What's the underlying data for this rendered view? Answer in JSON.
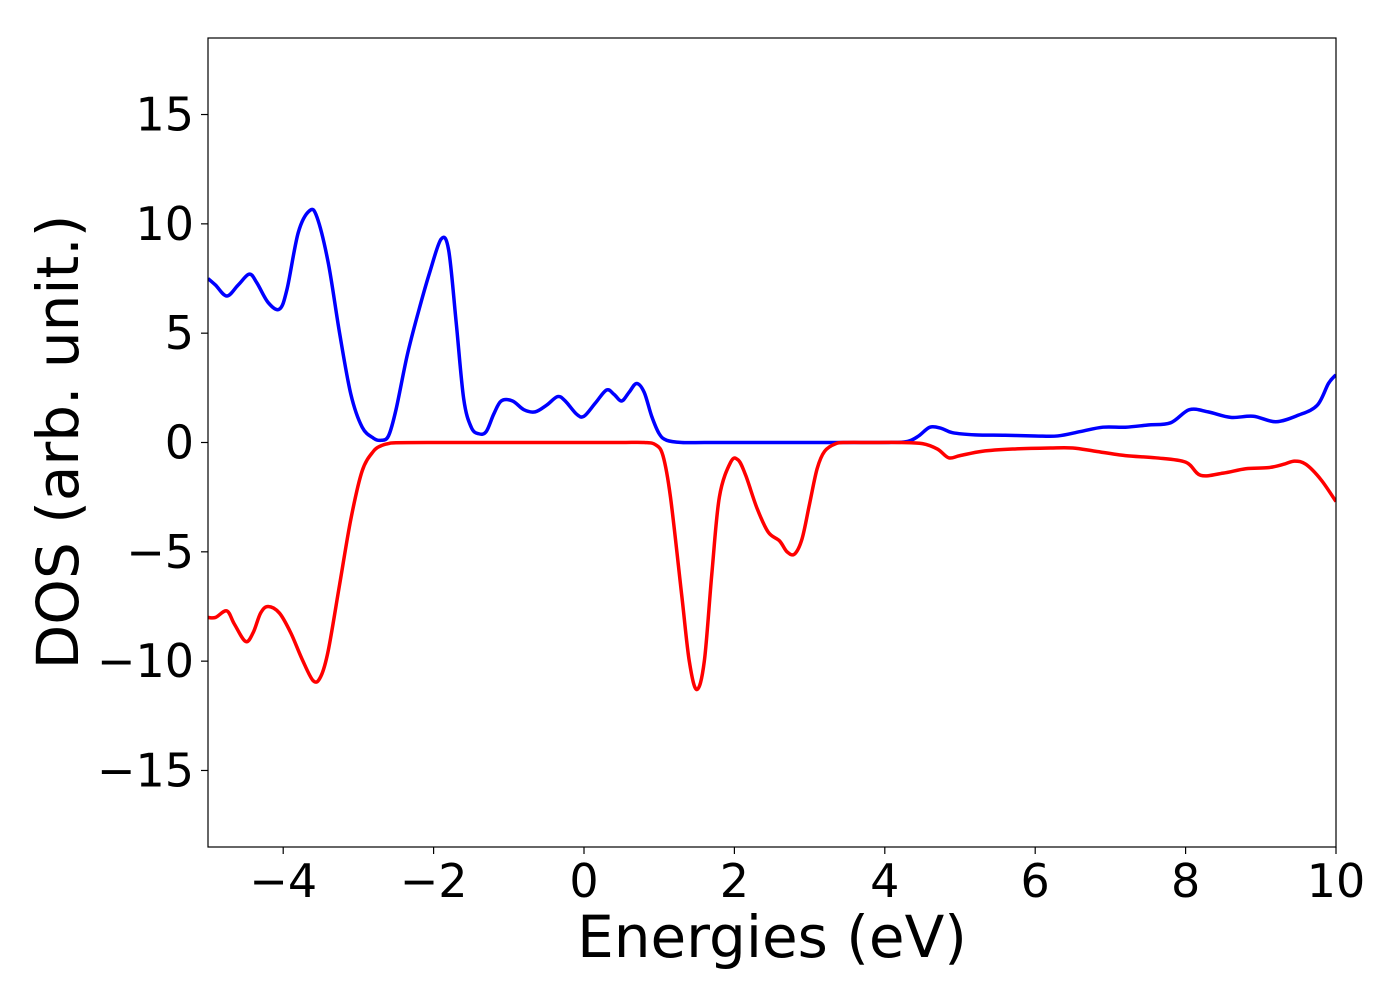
{
  "chart_data": {
    "type": "line",
    "title": "",
    "xlabel": "Energies (eV)",
    "ylabel": "DOS (arb. unit.)",
    "xlim": [
      -5,
      10
    ],
    "ylim": [
      -18.5,
      18.5
    ],
    "xticks": [
      -4,
      -2,
      0,
      2,
      4,
      6,
      8,
      10
    ],
    "yticks": [
      -15,
      -10,
      -5,
      0,
      5,
      10,
      15
    ],
    "xtick_labels": [
      "−4",
      "−2",
      "0",
      "2",
      "4",
      "6",
      "8",
      "10"
    ],
    "ytick_labels": [
      "−15",
      "−10",
      "−5",
      "0",
      "5",
      "10",
      "15"
    ],
    "grid": false,
    "legend": "none",
    "series": [
      {
        "color": "#0000ff",
        "x": [
          -5.0,
          -4.9,
          -4.75,
          -4.6,
          -4.45,
          -4.35,
          -4.2,
          -4.05,
          -3.95,
          -3.8,
          -3.65,
          -3.55,
          -3.4,
          -3.25,
          -3.1,
          -2.95,
          -2.8,
          -2.7,
          -2.6,
          -2.5,
          -2.35,
          -2.2,
          -2.05,
          -1.9,
          -1.8,
          -1.7,
          -1.6,
          -1.5,
          -1.4,
          -1.3,
          -1.2,
          -1.1,
          -0.95,
          -0.8,
          -0.65,
          -0.5,
          -0.35,
          -0.25,
          -0.1,
          0.0,
          0.15,
          0.3,
          0.4,
          0.5,
          0.6,
          0.7,
          0.8,
          0.9,
          1.0,
          1.1,
          1.3,
          1.6,
          2.0,
          3.0,
          4.0,
          4.3,
          4.45,
          4.6,
          4.75,
          4.9,
          5.2,
          5.6,
          6.0,
          6.3,
          6.6,
          6.9,
          7.2,
          7.5,
          7.8,
          8.05,
          8.3,
          8.6,
          8.9,
          9.2,
          9.5,
          9.75,
          9.9,
          10.0
        ],
        "y": [
          7.5,
          7.2,
          6.7,
          7.2,
          7.7,
          7.3,
          6.4,
          6.1,
          7.0,
          9.6,
          10.6,
          10.3,
          8.2,
          5.0,
          2.2,
          0.7,
          0.2,
          0.1,
          0.3,
          1.5,
          4.0,
          6.0,
          7.8,
          9.3,
          8.8,
          5.5,
          2.0,
          0.7,
          0.4,
          0.5,
          1.3,
          1.9,
          1.9,
          1.5,
          1.4,
          1.7,
          2.1,
          1.9,
          1.3,
          1.2,
          1.8,
          2.4,
          2.2,
          1.9,
          2.3,
          2.7,
          2.3,
          1.2,
          0.4,
          0.1,
          0.0,
          0.0,
          0.0,
          0.0,
          0.0,
          0.05,
          0.3,
          0.7,
          0.65,
          0.45,
          0.35,
          0.33,
          0.3,
          0.3,
          0.5,
          0.7,
          0.7,
          0.8,
          0.9,
          1.5,
          1.4,
          1.15,
          1.2,
          0.95,
          1.25,
          1.7,
          2.7,
          3.1
        ]
      },
      {
        "color": "#ff0000",
        "x": [
          -5.0,
          -4.9,
          -4.75,
          -4.65,
          -4.5,
          -4.4,
          -4.3,
          -4.2,
          -4.05,
          -3.9,
          -3.75,
          -3.6,
          -3.5,
          -3.4,
          -3.25,
          -3.1,
          -2.95,
          -2.8,
          -2.7,
          -2.6,
          -2.5,
          -2.0,
          -1.0,
          0.0,
          0.5,
          0.8,
          0.95,
          1.05,
          1.15,
          1.3,
          1.4,
          1.5,
          1.6,
          1.7,
          1.8,
          1.95,
          2.05,
          2.15,
          2.3,
          2.45,
          2.6,
          2.7,
          2.8,
          2.9,
          3.0,
          3.1,
          3.2,
          3.35,
          3.5,
          3.8,
          4.2,
          4.5,
          4.7,
          4.85,
          5.0,
          5.3,
          5.7,
          6.2,
          6.5,
          6.8,
          7.2,
          7.6,
          8.0,
          8.2,
          8.5,
          8.8,
          9.1,
          9.3,
          9.45,
          9.6,
          9.8,
          10.0
        ],
        "y": [
          -8.0,
          -8.0,
          -7.7,
          -8.3,
          -9.1,
          -8.7,
          -7.8,
          -7.5,
          -7.8,
          -8.7,
          -9.9,
          -10.9,
          -10.7,
          -9.5,
          -6.5,
          -3.5,
          -1.3,
          -0.4,
          -0.15,
          -0.05,
          -0.01,
          0.0,
          0.0,
          0.0,
          0.0,
          0.0,
          -0.1,
          -0.6,
          -2.5,
          -7.0,
          -10.0,
          -11.3,
          -10.0,
          -6.0,
          -2.5,
          -0.9,
          -0.8,
          -1.5,
          -3.0,
          -4.1,
          -4.5,
          -5.0,
          -5.1,
          -4.4,
          -2.8,
          -1.2,
          -0.4,
          -0.05,
          0.0,
          0.0,
          0.0,
          -0.05,
          -0.3,
          -0.7,
          -0.6,
          -0.4,
          -0.3,
          -0.25,
          -0.25,
          -0.4,
          -0.6,
          -0.7,
          -0.9,
          -1.5,
          -1.4,
          -1.2,
          -1.15,
          -1.0,
          -0.85,
          -1.0,
          -1.7,
          -2.7
        ]
      }
    ]
  }
}
